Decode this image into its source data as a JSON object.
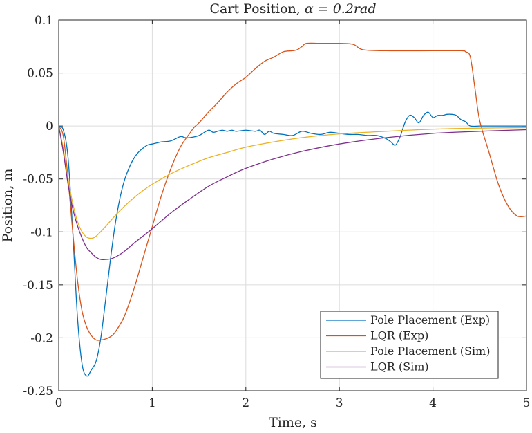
{
  "chart_data": {
    "type": "line",
    "title": "Cart Position, α = 0.2rad",
    "title_prefix": "Cart Position, ",
    "title_math": "α = 0.2rad",
    "xlabel": "Time, s",
    "ylabel": "Position, m",
    "xlim": [
      0,
      5
    ],
    "ylim": [
      -0.25,
      0.1
    ],
    "xticks": [
      0,
      1,
      2,
      3,
      4,
      5
    ],
    "xtick_labels": [
      "0",
      "1",
      "2",
      "3",
      "4",
      "5"
    ],
    "yticks": [
      0.1,
      0.05,
      0,
      -0.05,
      -0.1,
      -0.15,
      -0.2,
      -0.25
    ],
    "ytick_labels": [
      "0.1",
      "0.05",
      "0",
      "-0.05",
      "-0.1",
      "-0.15",
      "-0.2",
      "-0.25"
    ],
    "grid": true,
    "legend_position": "bottom-right",
    "series": [
      {
        "name": "Pole Placement (Exp)",
        "color": "#0072BD",
        "x": [
          0,
          0.05,
          0.1,
          0.15,
          0.2,
          0.25,
          0.3,
          0.35,
          0.4,
          0.45,
          0.5,
          0.55,
          0.6,
          0.65,
          0.7,
          0.75,
          0.8,
          0.85,
          0.9,
          0.95,
          1.0,
          1.05,
          1.1,
          1.2,
          1.3,
          1.35,
          1.4,
          1.5,
          1.6,
          1.65,
          1.7,
          1.75,
          1.8,
          1.85,
          1.9,
          2.0,
          2.1,
          2.15,
          2.2,
          2.25,
          2.3,
          2.4,
          2.5,
          2.6,
          2.7,
          2.8,
          2.9,
          3.0,
          3.1,
          3.2,
          3.3,
          3.4,
          3.5,
          3.55,
          3.6,
          3.65,
          3.7,
          3.75,
          3.8,
          3.85,
          3.9,
          3.95,
          4.0,
          4.05,
          4.1,
          4.15,
          4.2,
          4.25,
          4.3,
          4.35,
          4.4,
          4.5,
          4.6,
          4.8,
          5.0
        ],
        "values": [
          0,
          -0.004,
          -0.03,
          -0.1,
          -0.18,
          -0.225,
          -0.236,
          -0.23,
          -0.222,
          -0.2,
          -0.165,
          -0.128,
          -0.095,
          -0.07,
          -0.052,
          -0.04,
          -0.031,
          -0.025,
          -0.021,
          -0.018,
          -0.017,
          -0.016,
          -0.015,
          -0.014,
          -0.01,
          -0.011,
          -0.011,
          -0.009,
          -0.004,
          -0.006,
          -0.005,
          -0.004,
          -0.005,
          -0.004,
          -0.005,
          -0.004,
          -0.005,
          -0.004,
          -0.008,
          -0.005,
          -0.007,
          -0.008,
          -0.009,
          -0.005,
          -0.007,
          -0.008,
          -0.006,
          -0.007,
          -0.008,
          -0.008,
          -0.009,
          -0.009,
          -0.012,
          -0.015,
          -0.018,
          -0.01,
          0.003,
          0.01,
          0.008,
          0.003,
          0.01,
          0.013,
          0.008,
          0.01,
          0.01,
          0.011,
          0.011,
          0.01,
          0.006,
          0.004,
          0.0,
          0.0,
          0.0,
          0.0,
          0.0
        ]
      },
      {
        "name": "LQR (Exp)",
        "color": "#D95319",
        "x": [
          0,
          0.05,
          0.1,
          0.15,
          0.2,
          0.25,
          0.3,
          0.35,
          0.4,
          0.45,
          0.5,
          0.55,
          0.6,
          0.7,
          0.8,
          0.9,
          1.0,
          1.1,
          1.2,
          1.3,
          1.4,
          1.45,
          1.5,
          1.6,
          1.7,
          1.8,
          1.9,
          2.0,
          2.1,
          2.2,
          2.3,
          2.4,
          2.5,
          2.55,
          2.6,
          2.65,
          2.8,
          3.0,
          3.15,
          3.25,
          3.5,
          4.0,
          4.3,
          4.35,
          4.4,
          4.45,
          4.5,
          4.6,
          4.7,
          4.8,
          4.9,
          5.0
        ],
        "values": [
          0,
          -0.01,
          -0.05,
          -0.1,
          -0.145,
          -0.175,
          -0.19,
          -0.198,
          -0.202,
          -0.202,
          -0.201,
          -0.199,
          -0.195,
          -0.18,
          -0.155,
          -0.125,
          -0.095,
          -0.065,
          -0.04,
          -0.02,
          -0.007,
          -0.001,
          0.003,
          0.013,
          0.022,
          0.032,
          0.04,
          0.046,
          0.054,
          0.061,
          0.065,
          0.07,
          0.071,
          0.072,
          0.075,
          0.078,
          0.078,
          0.078,
          0.077,
          0.072,
          0.071,
          0.071,
          0.071,
          0.07,
          0.065,
          0.035,
          0.005,
          -0.025,
          -0.055,
          -0.075,
          -0.085,
          -0.085
        ]
      },
      {
        "name": "Pole Placement (Sim)",
        "color": "#EDB120",
        "x": [
          0,
          0.05,
          0.1,
          0.15,
          0.2,
          0.25,
          0.3,
          0.35,
          0.4,
          0.5,
          0.6,
          0.7,
          0.8,
          0.9,
          1.0,
          1.2,
          1.4,
          1.6,
          1.8,
          2.0,
          2.3,
          2.6,
          3.0,
          3.5,
          4.0,
          4.5,
          5.0
        ],
        "values": [
          0,
          -0.022,
          -0.05,
          -0.073,
          -0.09,
          -0.1,
          -0.105,
          -0.106,
          -0.104,
          -0.095,
          -0.085,
          -0.076,
          -0.068,
          -0.061,
          -0.055,
          -0.045,
          -0.037,
          -0.03,
          -0.025,
          -0.02,
          -0.015,
          -0.011,
          -0.0075,
          -0.005,
          -0.003,
          -0.002,
          -0.0015
        ]
      },
      {
        "name": "LQR (Sim)",
        "color": "#7E2F8E",
        "x": [
          0,
          0.05,
          0.1,
          0.15,
          0.2,
          0.25,
          0.3,
          0.35,
          0.4,
          0.45,
          0.5,
          0.55,
          0.6,
          0.65,
          0.7,
          0.8,
          0.9,
          1.0,
          1.2,
          1.4,
          1.6,
          1.8,
          2.0,
          2.3,
          2.6,
          3.0,
          3.5,
          4.0,
          4.5,
          5.0
        ],
        "values": [
          0,
          -0.025,
          -0.055,
          -0.078,
          -0.094,
          -0.106,
          -0.115,
          -0.12,
          -0.124,
          -0.126,
          -0.126,
          -0.1255,
          -0.124,
          -0.1215,
          -0.1185,
          -0.111,
          -0.104,
          -0.097,
          -0.082,
          -0.069,
          -0.057,
          -0.048,
          -0.04,
          -0.031,
          -0.024,
          -0.017,
          -0.011,
          -0.007,
          -0.005,
          -0.0035
        ]
      }
    ]
  }
}
